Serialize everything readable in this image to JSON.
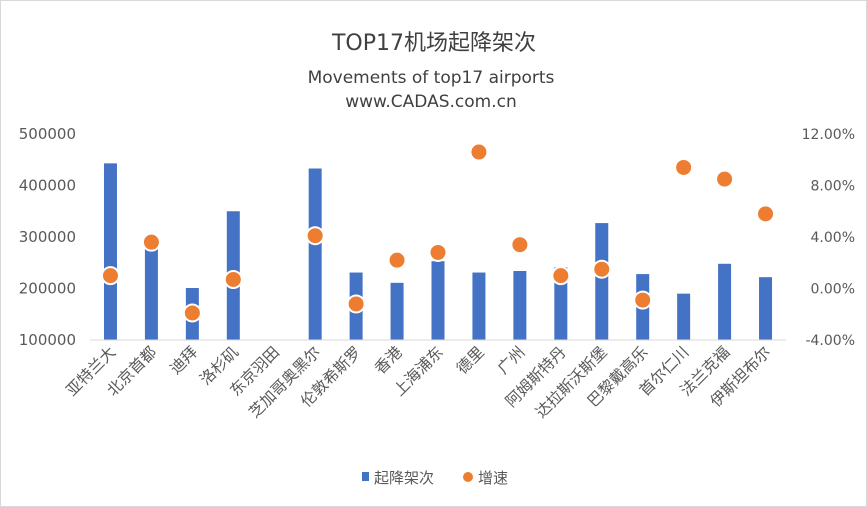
{
  "chart_data": {
    "type": "bar",
    "title": "TOP17机场起降架次",
    "subtitle": "Movements of top17 airports",
    "source": "www.CADAS.com.cn",
    "categories": [
      "亚特兰大",
      "北京首都",
      "迪拜",
      "洛杉矶",
      "东京羽田",
      "芝加哥奥黑尔",
      "伦敦希斯罗",
      "香港",
      "上海浦东",
      "德里",
      "广州",
      "阿姆斯特丹",
      "达拉斯沃斯堡",
      "巴黎戴高乐",
      "首尔仁川",
      "法兰克福",
      "伊斯坦布尔"
    ],
    "series": [
      {
        "name": "起降架次",
        "type": "bar",
        "axis": "left",
        "color": "#4472C4",
        "values": [
          443000,
          289000,
          201000,
          350000,
          null,
          433000,
          231000,
          211000,
          253000,
          231000,
          234000,
          241000,
          327000,
          228000,
          190000,
          248000,
          222000
        ]
      },
      {
        "name": "增速",
        "type": "scatter",
        "axis": "right",
        "color": "#ED7D31",
        "values": [
          1.0,
          3.6,
          -1.9,
          0.7,
          null,
          4.1,
          -1.2,
          2.2,
          2.8,
          10.6,
          3.4,
          1.0,
          1.5,
          -0.9,
          9.4,
          8.5,
          5.8
        ]
      }
    ],
    "y_left": {
      "min": 100000,
      "max": 500000,
      "ticks": [
        "100000",
        "200000",
        "300000",
        "400000",
        "500000"
      ],
      "tick_values": [
        100000,
        200000,
        300000,
        400000,
        500000
      ]
    },
    "y_right": {
      "min": -4,
      "max": 12,
      "ticks": [
        "-4.00%",
        "0.00%",
        "4.00%",
        "8.00%",
        "12.00%"
      ],
      "tick_values": [
        -4,
        0,
        4,
        8,
        12
      ]
    },
    "grid": false,
    "legend_position": "bottom"
  }
}
